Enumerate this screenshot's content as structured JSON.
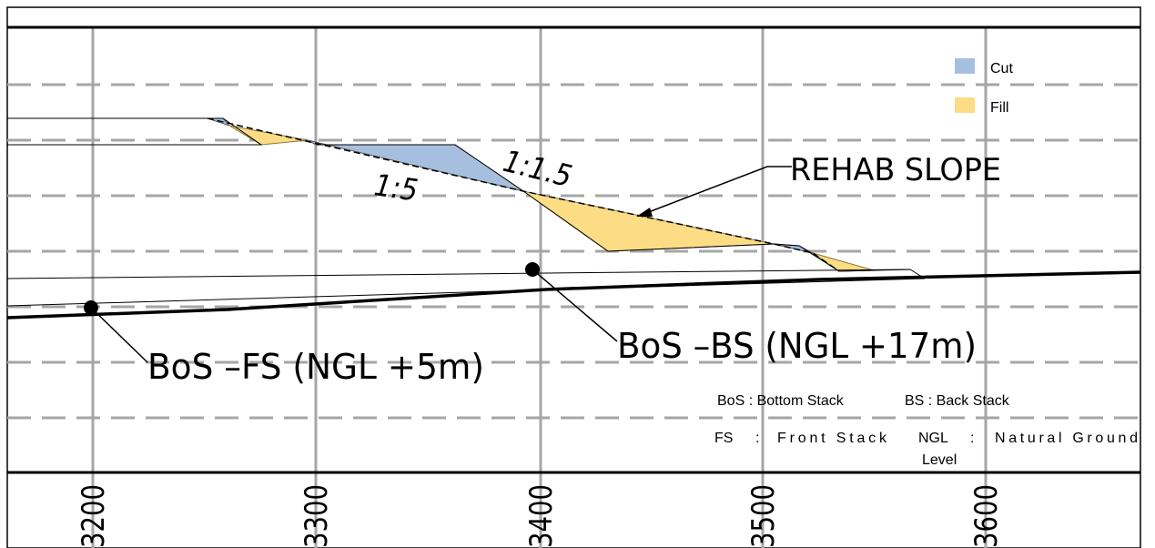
{
  "legend": {
    "cut_label": "Cut",
    "fill_label": "Fill",
    "cut_color": "#a7bfdf",
    "fill_color": "#fddc86"
  },
  "annotations": {
    "rehab_slope": "REHAB SLOPE",
    "slope_1_5": "1:5",
    "slope_1_1_5": "1:1.5",
    "bos_fs": "BoS –FS (NGL +5m)",
    "bos_bs": "BoS –BS (NGL +17m)"
  },
  "abbreviations": {
    "bos": "BoS : Bottom Stack",
    "bs": "BS : Back Stack",
    "fs_key": "FS",
    "fs_sep": ":",
    "fs_value": "Front Stack",
    "ngl_key": "NGL",
    "ngl_sep": ":",
    "ngl_value_1": "Natural Ground",
    "ngl_value_2": "Level"
  },
  "chainage_labels": [
    "3200",
    "3300",
    "3400",
    "3500",
    "3600"
  ]
}
